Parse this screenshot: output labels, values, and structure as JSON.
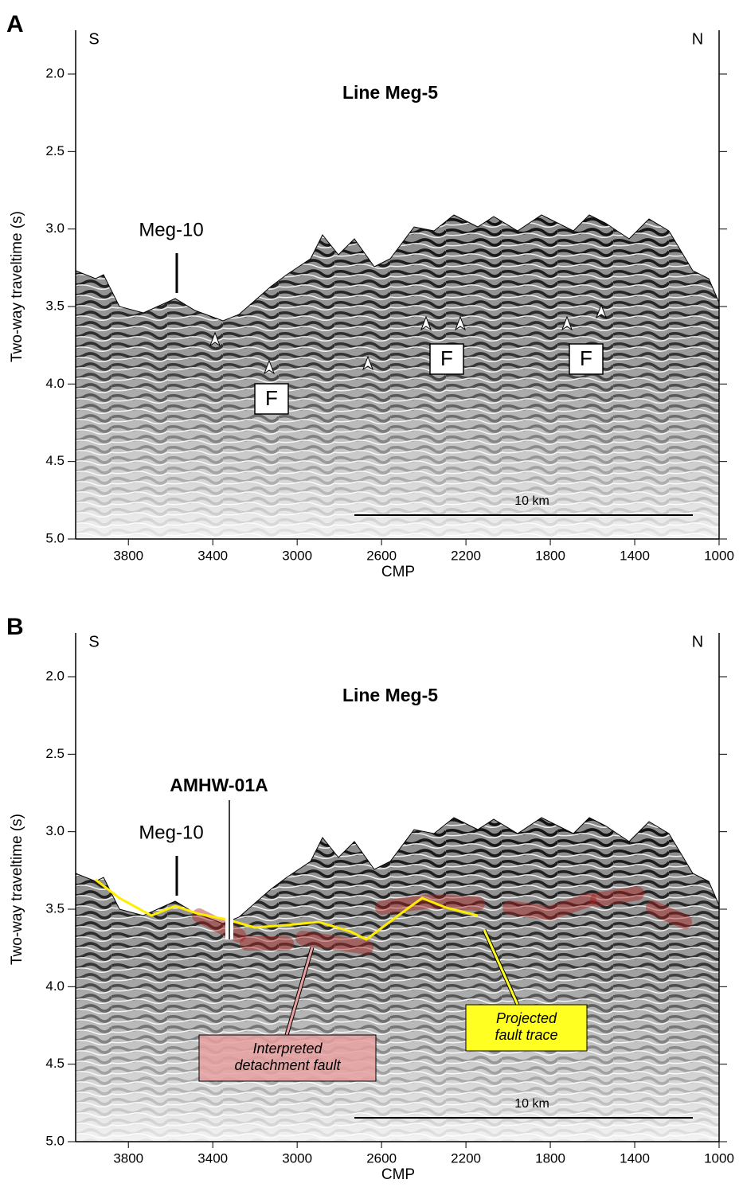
{
  "chart_data": [
    {
      "type": "seismic",
      "panel_label": "A",
      "title": "Line Meg-5",
      "xlabel": "CMP",
      "ylabel": "Two-way traveltime (s)",
      "left_label": "S",
      "right_label": "N",
      "xlim": [
        4050,
        1000
      ],
      "xticks": [
        3800,
        3400,
        3000,
        2600,
        2200,
        1800,
        1400,
        1000
      ],
      "ylim": [
        1.72,
        5.0
      ],
      "y_inverted": true,
      "yticks": [
        {
          "value": 2,
          "label": "2.0"
        },
        {
          "value": 2.5,
          "label": "2.5"
        },
        {
          "value": 3,
          "label": "3.0"
        },
        {
          "value": 3.5,
          "label": "3.5"
        },
        {
          "value": 4,
          "label": "4.0"
        },
        {
          "value": 4.5,
          "label": "4.5"
        },
        {
          "value": 5,
          "label": "5.0"
        }
      ],
      "well_labels": [
        "Meg-10"
      ],
      "fault_labels": [
        "F",
        "F",
        "F"
      ],
      "scale_bar": "10 km",
      "callouts": []
    },
    {
      "type": "seismic",
      "panel_label": "B",
      "title": "Line Meg-5",
      "xlabel": "CMP",
      "ylabel": "Two-way traveltime (s)",
      "left_label": "S",
      "right_label": "N",
      "xlim": [
        4050,
        1000
      ],
      "xticks": [
        3800,
        3400,
        3000,
        2600,
        2200,
        1800,
        1400,
        1000
      ],
      "ylim": [
        1.72,
        5.0
      ],
      "y_inverted": true,
      "yticks": [
        {
          "value": 2,
          "label": "2.0"
        },
        {
          "value": 2.5,
          "label": "2.5"
        },
        {
          "value": 3,
          "label": "3.0"
        },
        {
          "value": 3.5,
          "label": "3.5"
        },
        {
          "value": 4,
          "label": "4.0"
        },
        {
          "value": 4.5,
          "label": "4.5"
        },
        {
          "value": 5,
          "label": "5.0"
        }
      ],
      "well_labels": [
        "AMHW-01A",
        "Meg-10"
      ],
      "fault_labels": [],
      "scale_bar": "10 km",
      "callouts": [
        {
          "lines": [
            "Interpreted",
            "detachment fault"
          ],
          "color": "#e8a0a0"
        },
        {
          "lines": [
            "Projected",
            "fault trace"
          ],
          "color": "#ffff22"
        }
      ]
    }
  ]
}
